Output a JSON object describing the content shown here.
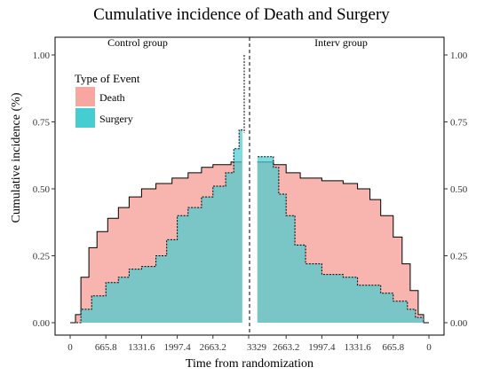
{
  "chart_data": {
    "type": "area",
    "title": "Cumulative incidence of Death and Surgery",
    "xlabel": "Time from randomization",
    "ylabel": "Cumulative incidence (%)",
    "ylim": [
      0,
      1
    ],
    "xlim": [
      0,
      3329
    ],
    "y_ticks": [
      "0.00",
      "0.25",
      "0.50",
      "0.75",
      "1.00"
    ],
    "x_ticks_left": [
      "0",
      "665.8",
      "1331.6",
      "1997.4",
      "2663.2",
      "3329"
    ],
    "x_ticks_right": [
      "2663.2",
      "1997.4",
      "1331.6",
      "665.8",
      "0"
    ],
    "panels": [
      "Control group",
      "Interv group"
    ],
    "legend": {
      "title": "Type of Event",
      "position": "top-left"
    },
    "grid": false,
    "colors": {
      "death": "#F8766D",
      "surgery": "#00BFC4",
      "death_fill": "#F8B5B0",
      "surgery_fill": "#7FBFBD"
    },
    "series": [
      {
        "name": "Death",
        "group": "Control group",
        "x": [
          0,
          100,
          200,
          350,
          500,
          700,
          900,
          1100,
          1331.6,
          1600,
          1900,
          2200,
          2450,
          2663.2,
          2800,
          3000,
          3200
        ],
        "y": [
          0.0,
          0.03,
          0.17,
          0.28,
          0.34,
          0.39,
          0.43,
          0.47,
          0.5,
          0.52,
          0.54,
          0.56,
          0.58,
          0.59,
          0.59,
          0.6,
          0.6
        ]
      },
      {
        "name": "Surgery",
        "group": "Control group",
        "x": [
          0,
          100,
          200,
          400,
          665.8,
          900,
          1100,
          1331.6,
          1600,
          1800,
          1997.4,
          2200,
          2450,
          2663.2,
          2900,
          3050,
          3150,
          3250
        ],
        "y": [
          0.0,
          0.0,
          0.05,
          0.1,
          0.15,
          0.17,
          0.2,
          0.21,
          0.25,
          0.31,
          0.4,
          0.43,
          0.47,
          0.51,
          0.56,
          0.65,
          0.72,
          0.76
        ]
      },
      {
        "name": "Death",
        "group": "Interv group",
        "x": [
          0,
          100,
          200,
          350,
          500,
          665.8,
          900,
          1100,
          1331.6,
          1600,
          1997.4,
          2400,
          2663.2,
          2900,
          3200
        ],
        "y": [
          0.0,
          0.03,
          0.12,
          0.22,
          0.32,
          0.4,
          0.46,
          0.5,
          0.52,
          0.53,
          0.54,
          0.56,
          0.59,
          0.6,
          0.6
        ]
      },
      {
        "name": "Surgery",
        "group": "Interv group",
        "x": [
          0,
          100,
          250,
          400,
          665.8,
          900,
          1331.6,
          1600,
          1997.4,
          2300,
          2500,
          2663.2,
          2800,
          2900,
          3200
        ],
        "y": [
          0.0,
          0.02,
          0.05,
          0.08,
          0.11,
          0.14,
          0.17,
          0.18,
          0.22,
          0.29,
          0.4,
          0.48,
          0.58,
          0.62,
          0.62
        ]
      }
    ]
  }
}
